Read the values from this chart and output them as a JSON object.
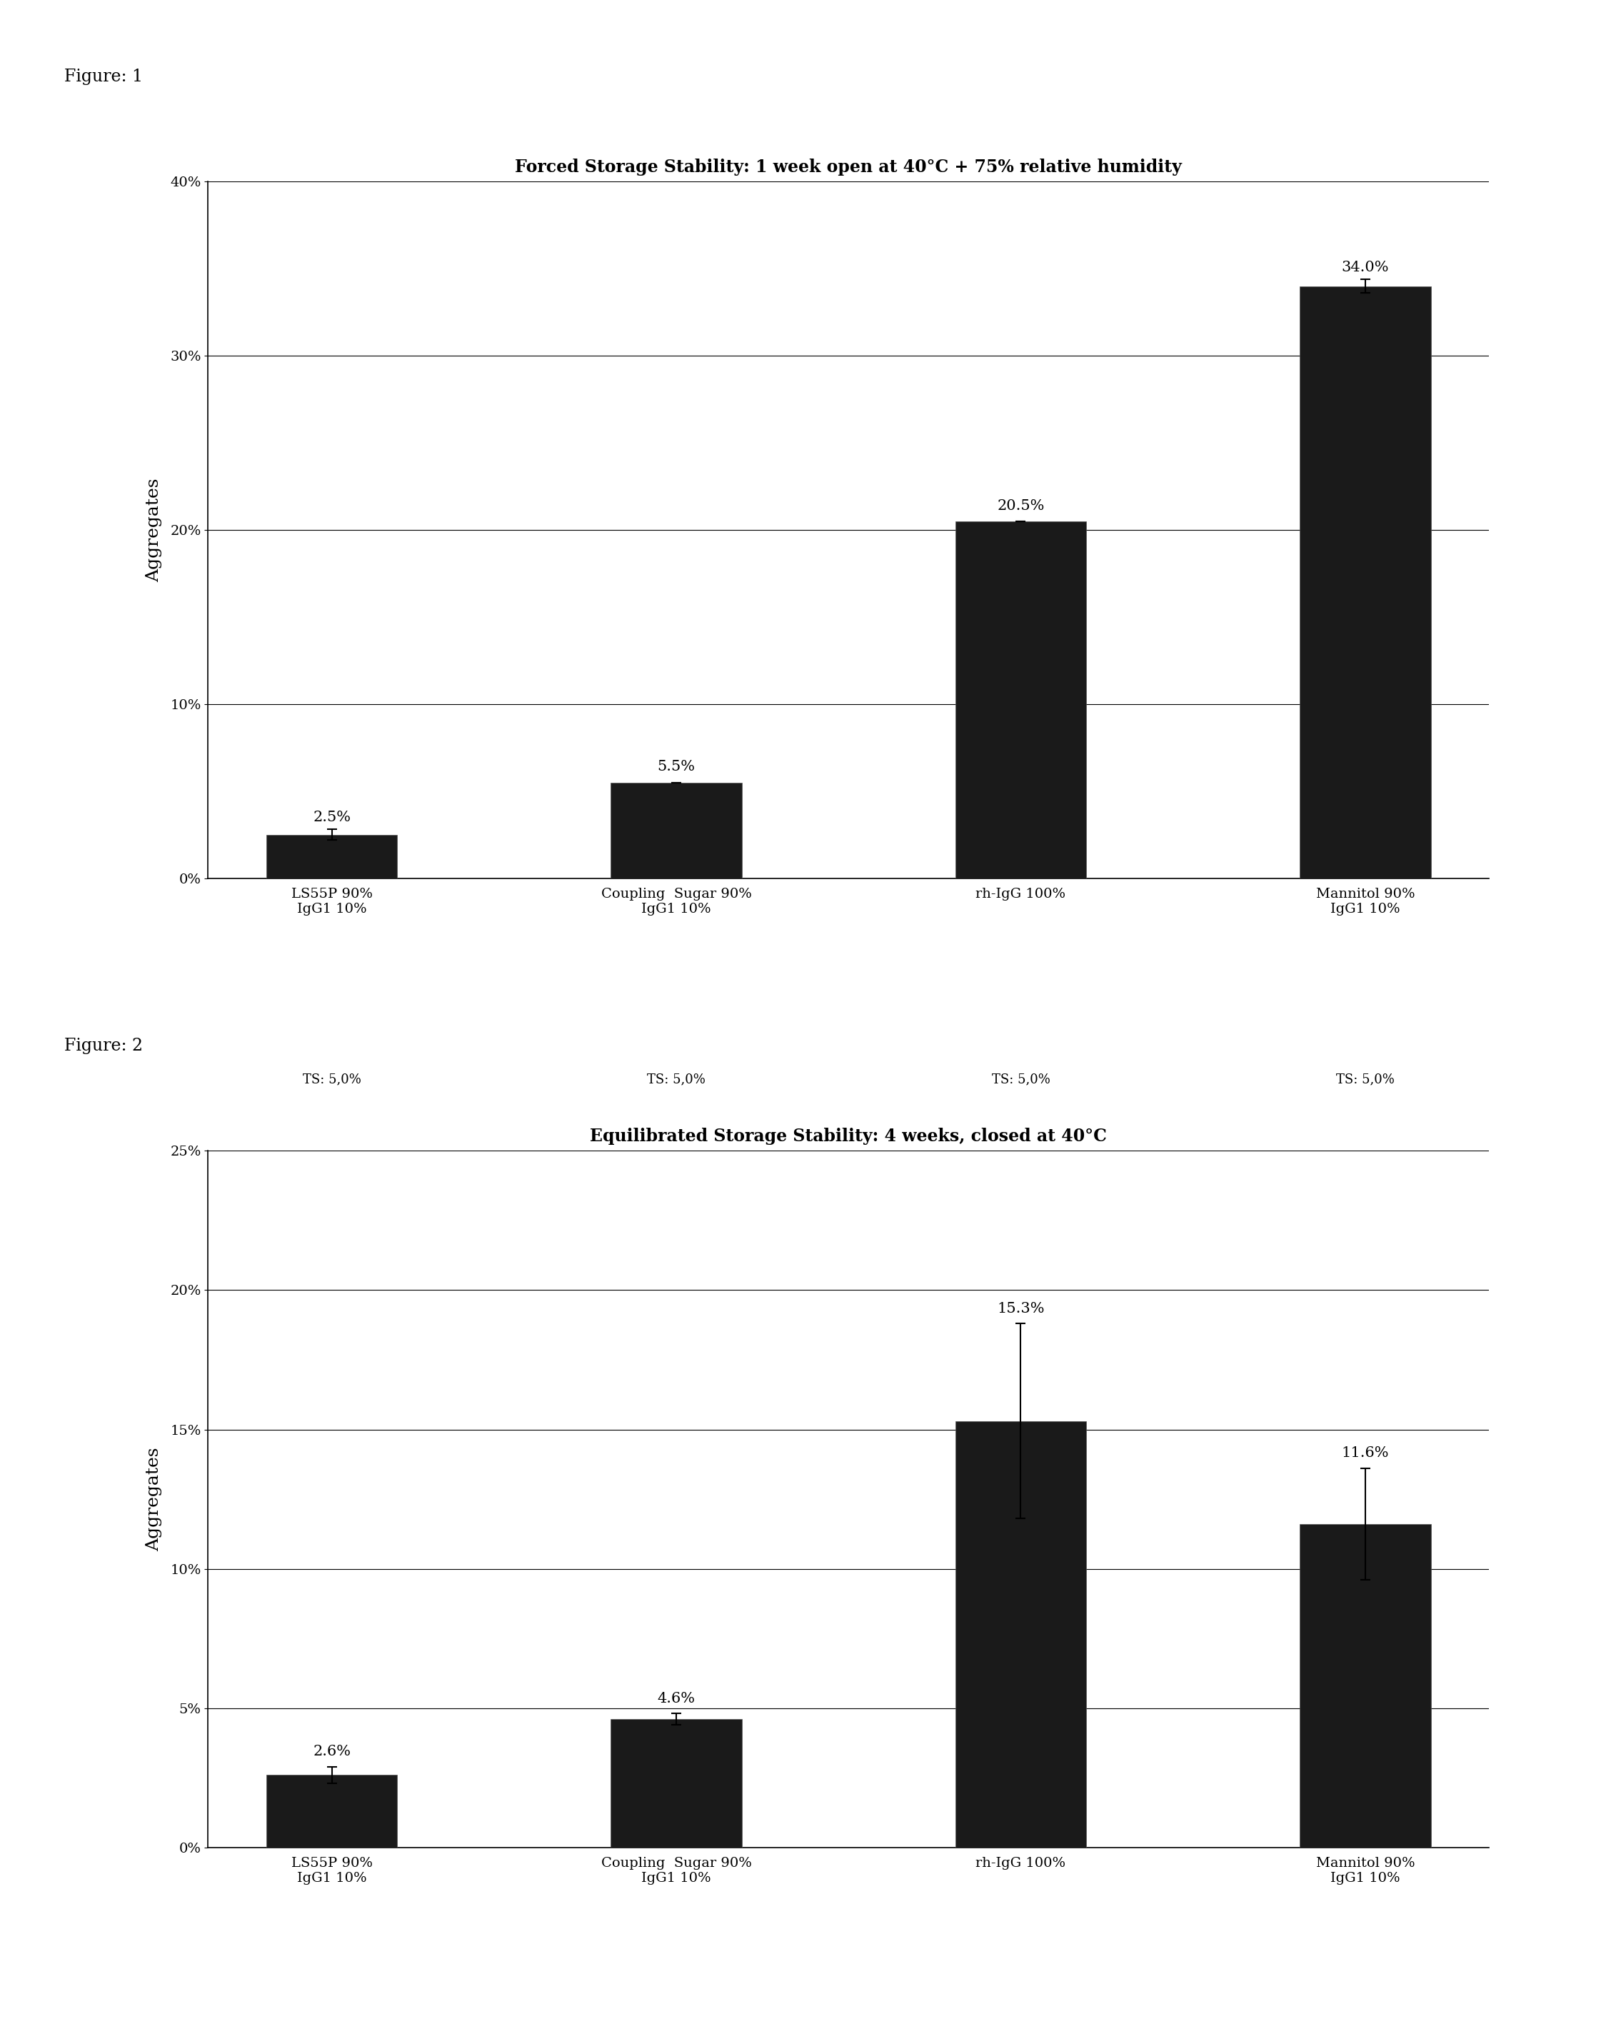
{
  "fig1": {
    "title": "Forced Storage Stability: 1 week open at 40°C + 75% relative humidity",
    "categories": [
      "LS55P 90%\nIgG1 10%",
      "Coupling  Sugar 90%\nIgG1 10%",
      "rh-IgG 100%",
      "Mannitol 90%\nIgG1 10%"
    ],
    "ts_labels": [
      "TS: 5,0%",
      "TS: 5,0%",
      "TS: 5,0%",
      "TS: 5,0%"
    ],
    "values": [
      2.5,
      5.5,
      20.5,
      34.0
    ],
    "errors": [
      0.3,
      0.0,
      0.0,
      0.4
    ],
    "labels": [
      "2.5%",
      "5.5%",
      "20.5%",
      "34.0%"
    ],
    "ylabel": "Aggregates",
    "ylim": [
      0,
      0.4
    ],
    "yticks": [
      0.0,
      0.1,
      0.2,
      0.3,
      0.4
    ],
    "ytick_labels": [
      "0%",
      "10%",
      "20%",
      "30%",
      "40%"
    ],
    "figure_label": "Figure: 1"
  },
  "fig2": {
    "title": "Equilibrated Storage Stability: 4 weeks, closed at 40°C",
    "categories": [
      "LS55P 90%\nIgG1 10%",
      "Coupling  Sugar 90%\nIgG1 10%",
      "rh-IgG 100%",
      "Mannitol 90%\nIgG1 10%"
    ],
    "ts_labels": [
      "TS: 5,0%",
      "TS: 5,0%",
      "TS: 5,0%",
      "TS: 5,0%"
    ],
    "values": [
      2.6,
      4.6,
      15.3,
      11.6
    ],
    "errors": [
      0.3,
      0.2,
      3.5,
      2.0
    ],
    "labels": [
      "2.6%",
      "4.6%",
      "15.3%",
      "11.6%"
    ],
    "ylabel": "Aggregates",
    "ylim": [
      0,
      0.25
    ],
    "yticks": [
      0.0,
      0.05,
      0.1,
      0.15,
      0.2,
      0.25
    ],
    "ytick_labels": [
      "0%",
      "5%",
      "10%",
      "15%",
      "20%",
      "25%"
    ],
    "figure_label": "Figure: 2"
  },
  "bar_color": "#1a1a1a",
  "bar_width": 0.38,
  "background_color": "#ffffff",
  "title_fontsize": 17,
  "label_fontsize": 16,
  "tick_fontsize": 14,
  "figure_label_fontsize": 17,
  "value_label_fontsize": 15,
  "ts_fontsize": 13
}
